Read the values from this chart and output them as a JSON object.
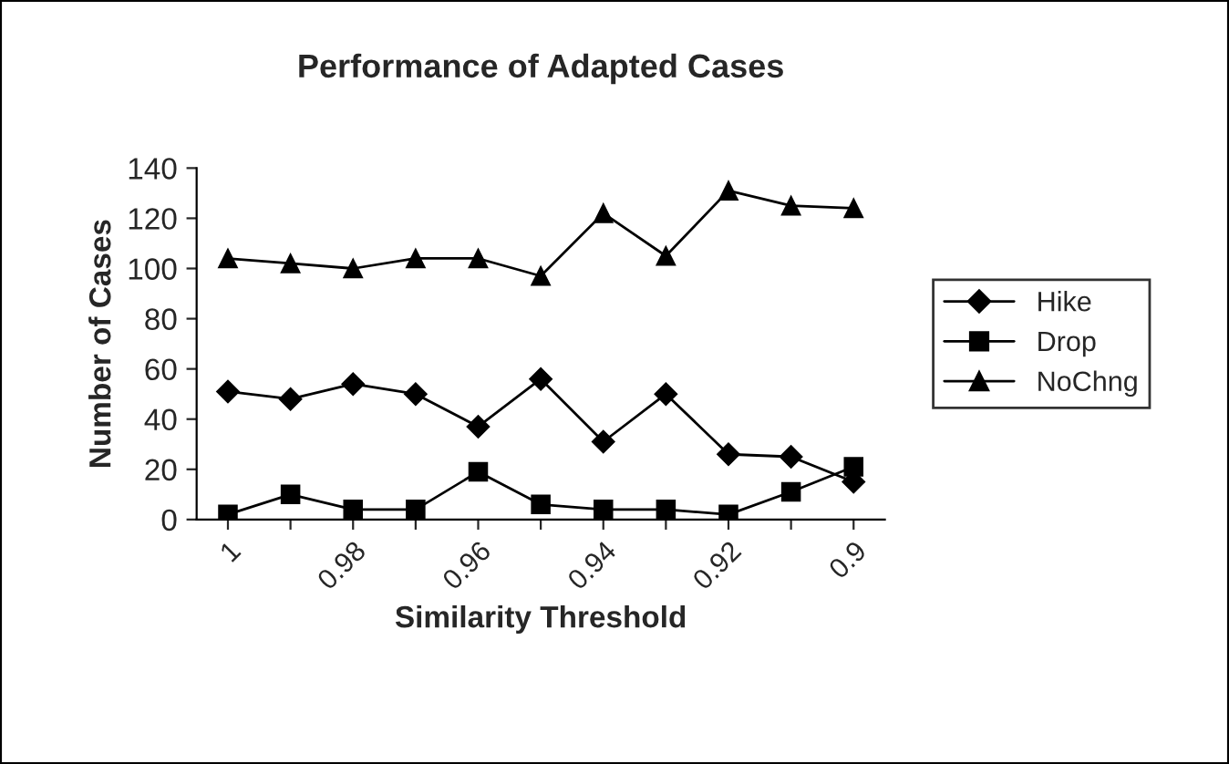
{
  "chart_data": {
    "type": "line",
    "title": "Performance of Adapted Cases",
    "xlabel": "Similarity Threshold",
    "ylabel": "Number of Cases",
    "categories": [
      "1",
      null,
      "0.98",
      null,
      "0.96",
      null,
      "0.94",
      null,
      "0.92",
      null,
      "0.9"
    ],
    "series": [
      {
        "name": "Hike",
        "color": "#000000",
        "marker": "diamond",
        "values": [
          51,
          48,
          54,
          50,
          37,
          56,
          31,
          50,
          26,
          25,
          15
        ]
      },
      {
        "name": "Drop",
        "color": "#000000",
        "marker": "square",
        "values": [
          2,
          10,
          4,
          4,
          19,
          6,
          4,
          4,
          2,
          11,
          21
        ]
      },
      {
        "name": "NoChng",
        "color": "#000000",
        "marker": "triangle",
        "values": [
          104,
          102,
          100,
          104,
          104,
          97,
          122,
          105,
          131,
          125,
          124
        ]
      }
    ],
    "ylim": [
      0,
      140
    ],
    "yticks": [
      0,
      20,
      40,
      60,
      80,
      100,
      120,
      140
    ],
    "grid": false,
    "legend": "right",
    "line_style": "solid"
  }
}
